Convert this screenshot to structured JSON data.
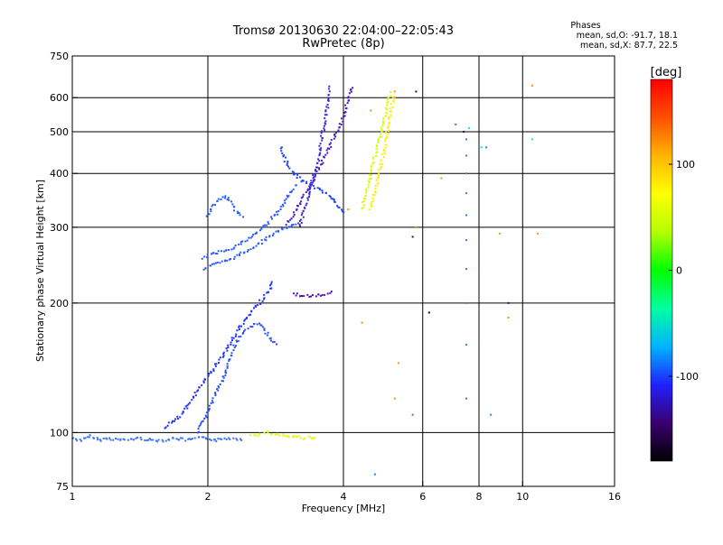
{
  "header": {
    "title_line1": "Tromsø 20130630 22:04:00–22:05:43",
    "title_line2": "RwPretec (8p)"
  },
  "phase_stats": {
    "heading": "Phases",
    "line_o": "mean, sd,O: -91.7, 18.1",
    "line_x": "mean, sd,X:  87.7, 22.5"
  },
  "chart_data": {
    "type": "scatter",
    "xlabel": "Frequency [MHz]",
    "ylabel": "Stationary phase Virtual Height [km]",
    "x_scale": "log",
    "y_scale": "log",
    "xlim": [
      1,
      16
    ],
    "ylim": [
      75,
      750
    ],
    "xticks": [
      1,
      2,
      4,
      6,
      8,
      10,
      16
    ],
    "xtick_labels": [
      "1",
      "2",
      "4",
      "6",
      "8",
      "10",
      "16"
    ],
    "xgrid": [
      2,
      4,
      6,
      8,
      10
    ],
    "yticks": [
      75,
      100,
      200,
      300,
      400,
      500,
      600,
      750
    ],
    "ytick_labels": [
      "75",
      "100",
      "200",
      "300",
      "400",
      "500",
      "600",
      "750"
    ],
    "ygrid": [
      100,
      200,
      300,
      400,
      500,
      600
    ],
    "grid": true,
    "colorbar": {
      "label": "[deg]",
      "range": [
        -180,
        180
      ],
      "ticks": [
        100,
        0,
        -100
      ],
      "tick_labels": [
        "100",
        "0",
        "-100"
      ],
      "stops": [
        "#000000",
        "#3a0070",
        "#2020ff",
        "#00b4ff",
        "#00ffa0",
        "#00ff00",
        "#b4ff00",
        "#ffff00",
        "#ffb400",
        "#ff5000",
        "#ff0000"
      ]
    },
    "series": [
      {
        "mode": "trace",
        "color": "#3a6fff",
        "points": [
          [
            1.0,
            97
          ],
          [
            1.05,
            96
          ],
          [
            1.1,
            98
          ],
          [
            1.15,
            96
          ],
          [
            1.2,
            97
          ],
          [
            1.3,
            96
          ],
          [
            1.4,
            97
          ],
          [
            1.5,
            96
          ],
          [
            1.6,
            96
          ],
          [
            1.7,
            97
          ],
          [
            1.8,
            96
          ],
          [
            1.9,
            97
          ],
          [
            2.0,
            97
          ],
          [
            2.1,
            96
          ],
          [
            2.2,
            97
          ],
          [
            2.3,
            97
          ],
          [
            2.4,
            96
          ]
        ]
      },
      {
        "mode": "trace",
        "color": "#2030ff",
        "points": [
          [
            1.6,
            103
          ],
          [
            1.75,
            110
          ],
          [
            1.85,
            120
          ],
          [
            1.95,
            130
          ],
          [
            2.05,
            140
          ],
          [
            2.15,
            150
          ],
          [
            2.25,
            162
          ],
          [
            2.35,
            175
          ],
          [
            2.45,
            185
          ],
          [
            2.55,
            195
          ],
          [
            2.65,
            205
          ],
          [
            2.75,
            215
          ],
          [
            2.8,
            225
          ]
        ]
      },
      {
        "mode": "trace",
        "color": "#2850ff",
        "points": [
          [
            1.9,
            100
          ],
          [
            2.0,
            112
          ],
          [
            2.1,
            125
          ],
          [
            2.2,
            140
          ],
          [
            2.3,
            160
          ],
          [
            2.45,
            175
          ],
          [
            2.6,
            180
          ],
          [
            2.75,
            165
          ],
          [
            2.85,
            160
          ]
        ]
      },
      {
        "mode": "trace",
        "color": "#2a5cff",
        "points": [
          [
            1.95,
            240
          ],
          [
            2.05,
            245
          ],
          [
            2.2,
            250
          ],
          [
            2.4,
            262
          ],
          [
            2.6,
            275
          ],
          [
            2.8,
            290
          ],
          [
            3.0,
            300
          ],
          [
            3.2,
            305
          ]
        ]
      },
      {
        "mode": "trace",
        "color": "#2a5cff",
        "points": [
          [
            1.95,
            255
          ],
          [
            2.1,
            262
          ],
          [
            2.3,
            270
          ],
          [
            2.5,
            285
          ],
          [
            2.7,
            305
          ],
          [
            2.9,
            330
          ],
          [
            3.05,
            360
          ],
          [
            3.15,
            380
          ]
        ]
      },
      {
        "mode": "trace",
        "color": "#2060ff",
        "points": [
          [
            2.0,
            320
          ],
          [
            2.05,
            335
          ],
          [
            2.1,
            345
          ],
          [
            2.2,
            355
          ],
          [
            2.3,
            330
          ],
          [
            2.4,
            315
          ]
        ]
      },
      {
        "mode": "trace",
        "color": "#4a1cc8",
        "points": [
          [
            3.0,
            305
          ],
          [
            3.2,
            340
          ],
          [
            3.4,
            380
          ],
          [
            3.6,
            430
          ],
          [
            3.8,
            480
          ],
          [
            4.0,
            540
          ],
          [
            4.1,
            600
          ],
          [
            4.2,
            640
          ]
        ]
      },
      {
        "mode": "trace",
        "color": "#3c28e0",
        "points": [
          [
            3.2,
            300
          ],
          [
            3.35,
            360
          ],
          [
            3.5,
            420
          ],
          [
            3.6,
            500
          ],
          [
            3.7,
            580
          ],
          [
            3.75,
            640
          ]
        ]
      },
      {
        "mode": "trace",
        "color": "#2040ff",
        "points": [
          [
            2.9,
            460
          ],
          [
            3.0,
            420
          ],
          [
            3.1,
            400
          ],
          [
            3.3,
            380
          ],
          [
            3.5,
            370
          ],
          [
            3.8,
            350
          ],
          [
            4.0,
            320
          ]
        ]
      },
      {
        "mode": "trace",
        "color": "#d4ff00",
        "points": [
          [
            4.4,
            330
          ],
          [
            4.5,
            360
          ],
          [
            4.6,
            400
          ],
          [
            4.7,
            440
          ],
          [
            4.8,
            480
          ],
          [
            4.9,
            520
          ],
          [
            5.0,
            580
          ],
          [
            5.1,
            620
          ]
        ]
      },
      {
        "mode": "trace",
        "color": "#ffee00",
        "points": [
          [
            4.6,
            330
          ],
          [
            4.75,
            380
          ],
          [
            4.9,
            440
          ],
          [
            5.0,
            500
          ],
          [
            5.1,
            560
          ],
          [
            5.2,
            610
          ]
        ]
      },
      {
        "mode": "trace",
        "color": "#5a10b0",
        "points": [
          [
            3.1,
            210
          ],
          [
            3.25,
            208
          ],
          [
            3.4,
            207
          ],
          [
            3.6,
            209
          ],
          [
            3.8,
            212
          ]
        ]
      },
      {
        "mode": "trace",
        "color": "#e0ff00",
        "points": [
          [
            2.5,
            98
          ],
          [
            2.6,
            99
          ],
          [
            2.7,
            100
          ],
          [
            2.9,
            99
          ],
          [
            3.1,
            98
          ],
          [
            3.3,
            97
          ],
          [
            3.5,
            98
          ]
        ]
      },
      {
        "mode": "points",
        "color": "#2a7cff",
        "points": [
          [
            7.5,
            480
          ],
          [
            7.5,
            440
          ],
          [
            7.5,
            400
          ],
          [
            7.5,
            360
          ],
          [
            7.5,
            320
          ],
          [
            7.5,
            280
          ],
          [
            7.5,
            240
          ],
          [
            7.5,
            200
          ],
          [
            7.5,
            160
          ],
          [
            7.5,
            120
          ],
          [
            7.1,
            520
          ],
          [
            8.3,
            460
          ],
          [
            6.2,
            190
          ],
          [
            5.7,
            110
          ],
          [
            4.7,
            80
          ],
          [
            8.5,
            110
          ]
        ]
      },
      {
        "mode": "points",
        "color": "#ff9000",
        "points": [
          [
            5.2,
            600
          ],
          [
            5.2,
            620
          ],
          [
            5.8,
            300
          ],
          [
            4.4,
            180
          ],
          [
            5.3,
            145
          ],
          [
            5.2,
            120
          ],
          [
            6.6,
            390
          ],
          [
            8.9,
            290
          ],
          [
            9.3,
            185
          ],
          [
            10.5,
            640
          ],
          [
            10.8,
            290
          ],
          [
            4.1,
            330
          ],
          [
            4.6,
            560
          ]
        ]
      },
      {
        "mode": "points",
        "color": "#3a0070",
        "points": [
          [
            5.8,
            620
          ],
          [
            6.2,
            190
          ],
          [
            7.4,
            500
          ],
          [
            9.3,
            200
          ],
          [
            5.7,
            285
          ]
        ]
      },
      {
        "mode": "points",
        "color": "#00e0ff",
        "points": [
          [
            8.1,
            460
          ],
          [
            7.6,
            510
          ],
          [
            10.5,
            480
          ]
        ]
      }
    ]
  }
}
